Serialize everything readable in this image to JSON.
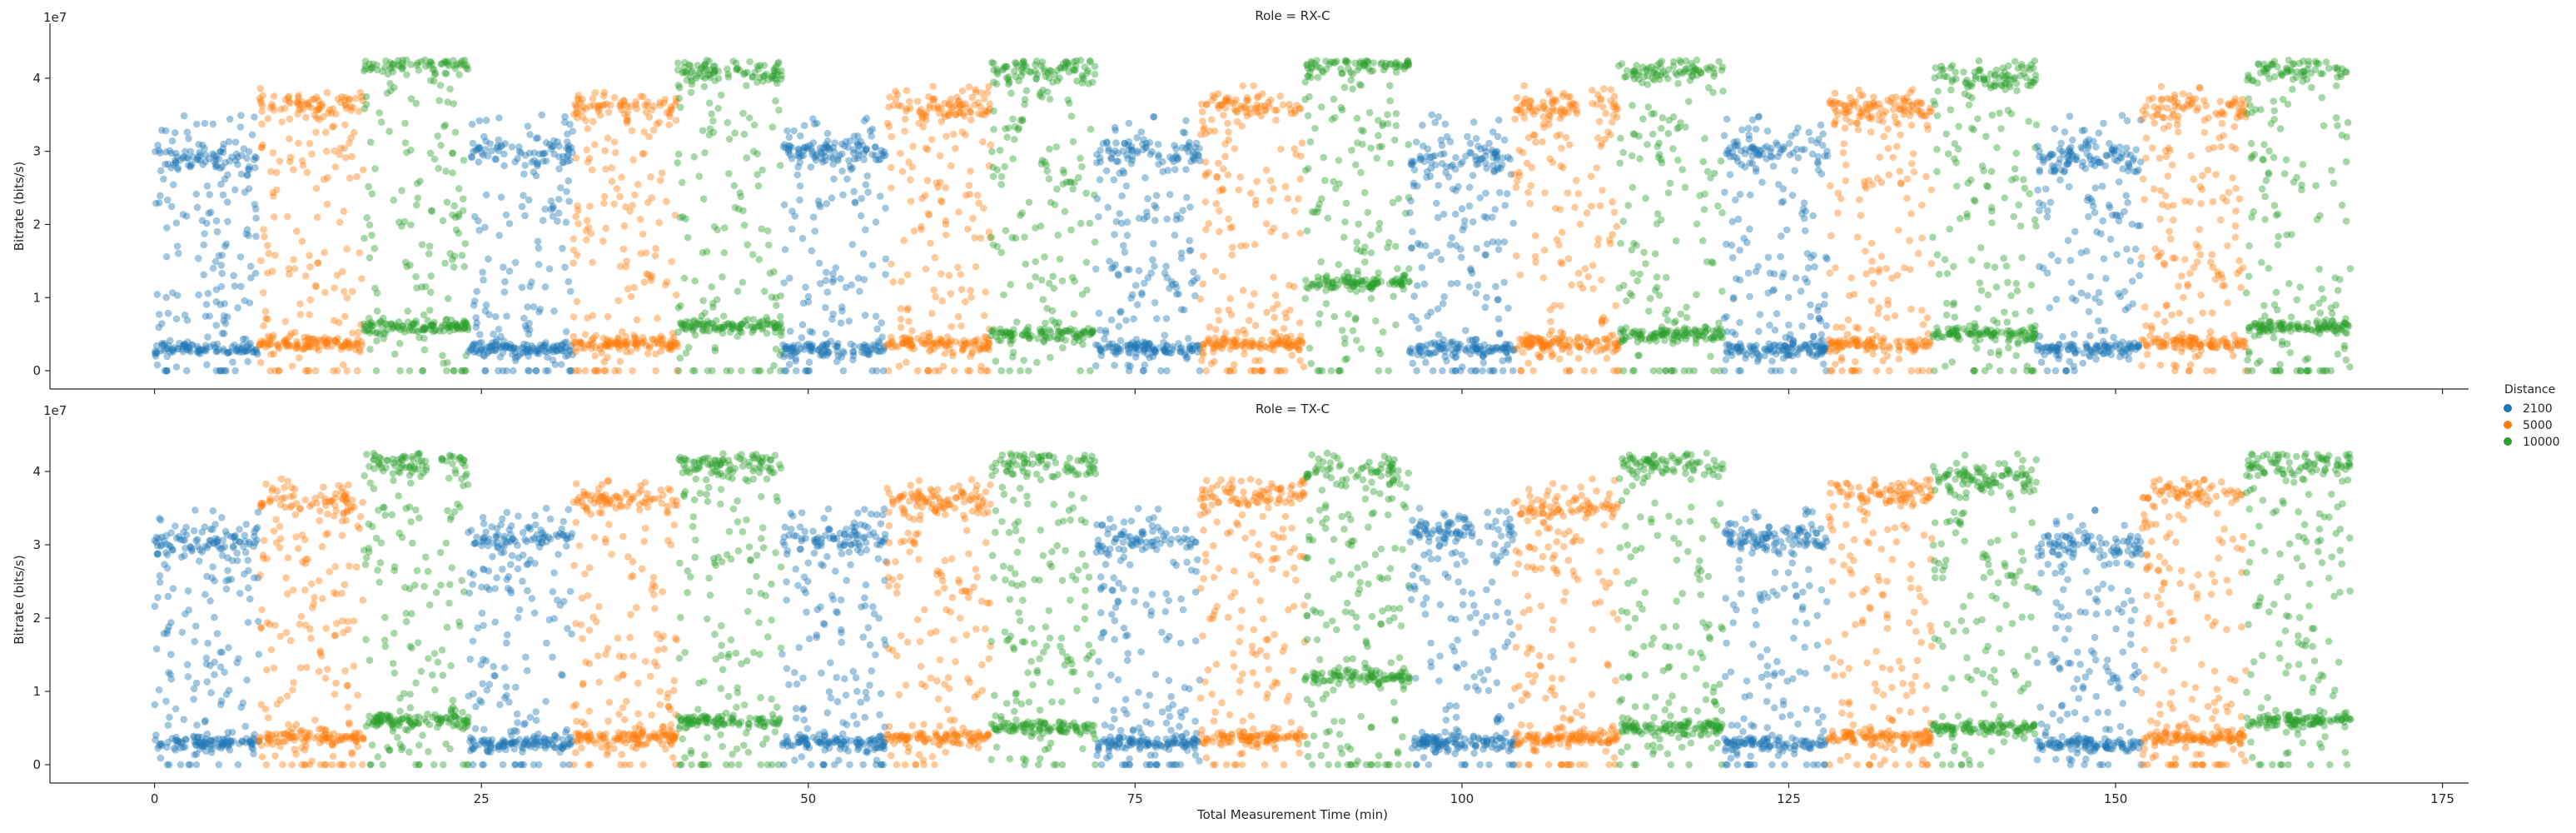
{
  "chart_data": {
    "type": "scatter",
    "xlabel": "Total Measurement Time (min)",
    "ylabel": "Bitrate (bits/s)",
    "y_offset_label": "1e7",
    "xlim": [
      -8,
      177
    ],
    "ylim": [
      -0.25,
      4.75
    ],
    "x_ticks": [
      0,
      25,
      50,
      75,
      100,
      125,
      150,
      175
    ],
    "x_tick_labels": [
      "0",
      "25",
      "50",
      "75",
      "100",
      "125",
      "150",
      "175"
    ],
    "y_ticks": [
      0,
      1,
      2,
      3,
      4
    ],
    "y_tick_labels": [
      "0",
      "1",
      "2",
      "3",
      "4"
    ],
    "grid": false,
    "legend": {
      "title": "Distance",
      "placement": "right",
      "entries": [
        {
          "label": "2100",
          "color": "#1f77b4"
        },
        {
          "label": "5000",
          "color": "#ff7f0e"
        },
        {
          "label": "10000",
          "color": "#2ca02c"
        }
      ]
    },
    "panels": [
      {
        "title": "Role = RX-C",
        "segments": [
          {
            "series": "2100",
            "x": [
              0,
              8
            ],
            "bands": [
              0.3,
              2.9
            ]
          },
          {
            "series": "5000",
            "x": [
              8,
              16
            ],
            "bands": [
              0.37,
              3.6
            ]
          },
          {
            "series": "10000",
            "x": [
              16,
              24
            ],
            "bands": [
              0.6,
              4.2
            ]
          },
          {
            "series": "2100",
            "x": [
              24,
              32
            ],
            "bands": [
              0.3,
              3.0
            ]
          },
          {
            "series": "5000",
            "x": [
              32,
              40
            ],
            "bands": [
              0.37,
              3.6
            ]
          },
          {
            "series": "10000",
            "x": [
              40,
              48
            ],
            "bands": [
              0.6,
              4.1
            ]
          },
          {
            "series": "2100",
            "x": [
              48,
              56
            ],
            "bands": [
              0.3,
              3.0
            ]
          },
          {
            "series": "5000",
            "x": [
              56,
              64
            ],
            "bands": [
              0.37,
              3.6
            ]
          },
          {
            "series": "10000",
            "x": [
              64,
              72
            ],
            "bands": [
              0.5,
              4.1
            ]
          },
          {
            "series": "2100",
            "x": [
              72,
              80
            ],
            "bands": [
              0.3,
              3.0
            ]
          },
          {
            "series": "5000",
            "x": [
              80,
              88
            ],
            "bands": [
              0.37,
              3.6
            ]
          },
          {
            "series": "10000",
            "x": [
              88,
              96
            ],
            "bands": [
              1.2,
              4.2
            ]
          },
          {
            "series": "2100",
            "x": [
              96,
              104
            ],
            "bands": [
              0.3,
              2.9
            ]
          },
          {
            "series": "5000",
            "x": [
              104,
              112
            ],
            "bands": [
              0.37,
              3.6
            ]
          },
          {
            "series": "10000",
            "x": [
              112,
              120
            ],
            "bands": [
              0.5,
              4.1
            ]
          },
          {
            "series": "2100",
            "x": [
              120,
              128
            ],
            "bands": [
              0.3,
              3.0
            ]
          },
          {
            "series": "5000",
            "x": [
              128,
              136
            ],
            "bands": [
              0.37,
              3.6
            ]
          },
          {
            "series": "10000",
            "x": [
              136,
              144
            ],
            "bands": [
              0.5,
              4.0
            ]
          },
          {
            "series": "2100",
            "x": [
              144,
              152
            ],
            "bands": [
              0.3,
              2.9
            ]
          },
          {
            "series": "5000",
            "x": [
              152,
              160
            ],
            "bands": [
              0.37,
              3.6
            ]
          },
          {
            "series": "10000",
            "x": [
              160,
              168
            ],
            "bands": [
              0.6,
              4.1
            ]
          }
        ]
      },
      {
        "title": "Role = TX-C",
        "segments": [
          {
            "series": "2100",
            "x": [
              0,
              8
            ],
            "bands": [
              0.3,
              3.05
            ]
          },
          {
            "series": "5000",
            "x": [
              8,
              16
            ],
            "bands": [
              0.37,
              3.6
            ]
          },
          {
            "series": "10000",
            "x": [
              16,
              24
            ],
            "bands": [
              0.6,
              4.1
            ]
          },
          {
            "series": "2100",
            "x": [
              24,
              32
            ],
            "bands": [
              0.3,
              3.1
            ]
          },
          {
            "series": "5000",
            "x": [
              32,
              40
            ],
            "bands": [
              0.37,
              3.6
            ]
          },
          {
            "series": "10000",
            "x": [
              40,
              48
            ],
            "bands": [
              0.6,
              4.1
            ]
          },
          {
            "series": "2100",
            "x": [
              48,
              56
            ],
            "bands": [
              0.3,
              3.1
            ]
          },
          {
            "series": "5000",
            "x": [
              56,
              64
            ],
            "bands": [
              0.37,
              3.6
            ]
          },
          {
            "series": "10000",
            "x": [
              64,
              72
            ],
            "bands": [
              0.5,
              4.1
            ]
          },
          {
            "series": "2100",
            "x": [
              72,
              80
            ],
            "bands": [
              0.3,
              3.05
            ]
          },
          {
            "series": "5000",
            "x": [
              80,
              88
            ],
            "bands": [
              0.37,
              3.7
            ]
          },
          {
            "series": "10000",
            "x": [
              88,
              96
            ],
            "bands": [
              1.2,
              4.0
            ]
          },
          {
            "series": "2100",
            "x": [
              96,
              104
            ],
            "bands": [
              0.3,
              3.2
            ]
          },
          {
            "series": "5000",
            "x": [
              104,
              112
            ],
            "bands": [
              0.37,
              3.5
            ]
          },
          {
            "series": "10000",
            "x": [
              112,
              120
            ],
            "bands": [
              0.5,
              4.1
            ]
          },
          {
            "series": "2100",
            "x": [
              120,
              128
            ],
            "bands": [
              0.3,
              3.1
            ]
          },
          {
            "series": "5000",
            "x": [
              128,
              136
            ],
            "bands": [
              0.37,
              3.7
            ]
          },
          {
            "series": "10000",
            "x": [
              136,
              144
            ],
            "bands": [
              0.5,
              3.9
            ]
          },
          {
            "series": "2100",
            "x": [
              144,
              152
            ],
            "bands": [
              0.27,
              3.0
            ]
          },
          {
            "series": "5000",
            "x": [
              152,
              160
            ],
            "bands": [
              0.37,
              3.7
            ]
          },
          {
            "series": "10000",
            "x": [
              160,
              168
            ],
            "bands": [
              0.6,
              4.1
            ]
          }
        ]
      }
    ]
  }
}
